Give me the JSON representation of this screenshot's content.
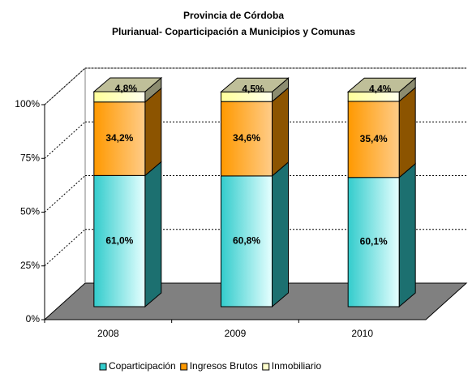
{
  "chart_data": {
    "type": "bar",
    "stacked": true,
    "title": [
      "Provincia de Córdoba",
      "Plurianual- Coparticipación a Municipios y Comunas"
    ],
    "categories": [
      "2008",
      "2009",
      "2010"
    ],
    "series": [
      {
        "name": "Coparticipación",
        "color": "#33cccc",
        "values": [
          61.0,
          60.8,
          60.1
        ],
        "value_labels": [
          "61,0%",
          "60,8%",
          "60,1%"
        ]
      },
      {
        "name": "Ingresos Brutos",
        "color": "#ff9900",
        "values": [
          34.2,
          34.6,
          35.4
        ],
        "value_labels": [
          "34,2%",
          "34,6%",
          "35,4%"
        ]
      },
      {
        "name": "Inmobiliario",
        "color": "#ffffcc",
        "values": [
          4.8,
          4.5,
          4.4
        ],
        "value_labels": [
          "4,8%",
          "4,5%",
          "4,4%"
        ]
      }
    ],
    "ylim": [
      0,
      100
    ],
    "yticks": [
      {
        "value": 0,
        "label": "0%"
      },
      {
        "value": 25,
        "label": "25%"
      },
      {
        "value": 50,
        "label": "50%"
      },
      {
        "value": 75,
        "label": "75%"
      },
      {
        "value": 100,
        "label": "100%"
      }
    ],
    "grid": true,
    "legend": "bottom"
  }
}
